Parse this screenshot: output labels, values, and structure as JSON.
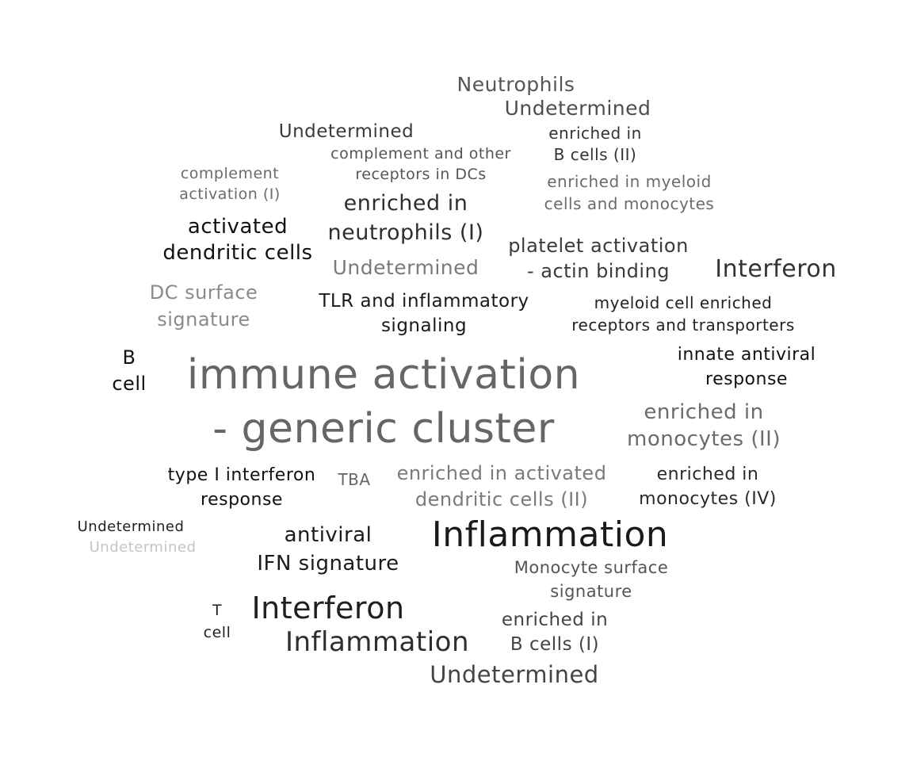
{
  "words": [
    {
      "lines": [
        "Neutrophils"
      ],
      "color": "#555555"
    },
    {
      "lines": [
        "Undetermined"
      ],
      "color": "#4d4d4d"
    },
    {
      "lines": [
        "Undetermined"
      ],
      "color": "#3a3a3a"
    },
    {
      "lines": [
        "enriched in",
        "B cells (II)"
      ],
      "color": "#333333"
    },
    {
      "lines": [
        "complement and other",
        "receptors in DCs"
      ],
      "color": "#555555"
    },
    {
      "lines": [
        "complement",
        "activation (I)"
      ],
      "color": "#6b6b6b"
    },
    {
      "lines": [
        "enriched in myeloid",
        "cells and monocytes"
      ],
      "color": "#6b6b6b"
    },
    {
      "lines": [
        "enriched in",
        "neutrophils (I)"
      ],
      "color": "#2e2e2e"
    },
    {
      "lines": [
        "activated",
        "dendritic cells"
      ],
      "color": "#111111"
    },
    {
      "lines": [
        "platelet activation",
        "- actin binding"
      ],
      "color": "#3a3a3a"
    },
    {
      "lines": [
        "Undetermined"
      ],
      "color": "#7a7a7a"
    },
    {
      "lines": [
        "Interferon"
      ],
      "color": "#333333"
    },
    {
      "lines": [
        "DC surface",
        "signature"
      ],
      "color": "#8a8a8a"
    },
    {
      "lines": [
        "TLR and inflammatory",
        "signaling"
      ],
      "color": "#1a1a1a"
    },
    {
      "lines": [
        "myeloid cell enriched",
        "receptors and transporters"
      ],
      "color": "#222222"
    },
    {
      "lines": [
        "B",
        "cell"
      ],
      "color": "#111111"
    },
    {
      "lines": [
        "innate antiviral",
        "response"
      ],
      "color": "#111111"
    },
    {
      "lines": [
        "immune activation",
        "- generic cluster"
      ],
      "color": "#666666"
    },
    {
      "lines": [
        "enriched in",
        "monocytes (II)"
      ],
      "color": "#6b6b6b"
    },
    {
      "lines": [
        "type I interferon",
        "response"
      ],
      "color": "#111111"
    },
    {
      "lines": [
        "TBA"
      ],
      "color": "#666666"
    },
    {
      "lines": [
        "enriched in activated",
        "dendritic cells (II)"
      ],
      "color": "#7a7a7a"
    },
    {
      "lines": [
        "enriched in",
        "monocytes (IV)"
      ],
      "color": "#2a2a2a"
    },
    {
      "lines": [
        "Undetermined"
      ],
      "color": "#222222"
    },
    {
      "lines": [
        "Undetermined"
      ],
      "color": "#c4c4c4"
    },
    {
      "lines": [
        "antiviral",
        "IFN signature"
      ],
      "color": "#1a1a1a"
    },
    {
      "lines": [
        "Inflammation"
      ],
      "color": "#1a1a1a"
    },
    {
      "lines": [
        "Monocyte surface",
        "signature"
      ],
      "color": "#555555"
    },
    {
      "lines": [
        "T",
        "cell"
      ],
      "color": "#222222"
    },
    {
      "lines": [
        "Interferon"
      ],
      "color": "#1f1f1f"
    },
    {
      "lines": [
        "Inflammation"
      ],
      "color": "#2e2e2e"
    },
    {
      "lines": [
        "enriched in",
        "B cells (I)"
      ],
      "color": "#444444"
    },
    {
      "lines": [
        "Undetermined"
      ],
      "color": "#444444"
    }
  ]
}
